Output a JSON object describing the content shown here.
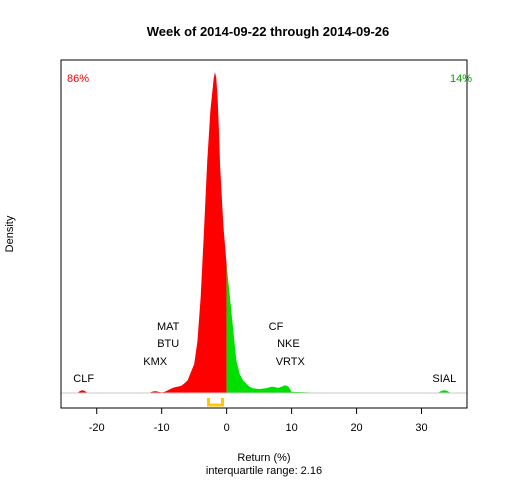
{
  "chart_data": {
    "type": "area",
    "title": "Week of 2014-09-22 through 2014-09-26",
    "xlabel": "Return (%)",
    "ylabel": "Density",
    "subtitle": "interquartile range: 2.16",
    "xlim": [
      -25.5,
      37
    ],
    "xticks": [
      -20,
      -10,
      0,
      10,
      20,
      30
    ],
    "colors": {
      "negative": "#ff0000",
      "positive": "#00e000",
      "iqr_bracket": "#ffc800",
      "baseline": "#c8c8c8"
    },
    "percent_negative": "86%",
    "percent_positive": "14%",
    "density_curve": {
      "x": [
        -23.0,
        -22.6,
        -22.2,
        -21.8,
        -21.4,
        -20.0,
        -15.0,
        -12.0,
        -11.5,
        -11.0,
        -10.5,
        -10.0,
        -9.5,
        -9.0,
        -8.5,
        -8.0,
        -7.5,
        -7.0,
        -6.5,
        -6.0,
        -5.5,
        -5.0,
        -4.5,
        -4.0,
        -3.5,
        -3.0,
        -2.5,
        -2.0,
        -1.8,
        -1.6,
        -1.4,
        -1.2,
        -1.0,
        -0.5,
        0.0,
        0.5,
        1.0,
        1.5,
        2.0,
        2.5,
        3.0,
        3.5,
        4.0,
        5.0,
        6.0,
        7.0,
        8.0,
        9.0,
        9.5,
        10.0,
        15.0,
        32.5,
        33.0,
        33.5,
        34.0,
        34.5,
        36.0
      ],
      "y": [
        0.0,
        0.006,
        0.009,
        0.006,
        0.0,
        0.0,
        0.0,
        0.0,
        0.004,
        0.006,
        0.004,
        0.002,
        0.004,
        0.009,
        0.014,
        0.018,
        0.02,
        0.022,
        0.03,
        0.04,
        0.065,
        0.09,
        0.16,
        0.3,
        0.5,
        0.72,
        0.88,
        0.98,
        1.0,
        0.98,
        0.92,
        0.82,
        0.7,
        0.52,
        0.4,
        0.3,
        0.2,
        0.1,
        0.06,
        0.04,
        0.03,
        0.02,
        0.015,
        0.012,
        0.015,
        0.02,
        0.016,
        0.024,
        0.02,
        0.004,
        0.0,
        0.0,
        0.006,
        0.009,
        0.006,
        0.0,
        0.0
      ]
    },
    "iqr_range": [
      -2.8,
      -0.64
    ],
    "annotations": [
      {
        "label": "MAT",
        "x": -9.0,
        "level": 4
      },
      {
        "label": "BTU",
        "x": -9.0,
        "level": 3
      },
      {
        "label": "KMX",
        "x": -11.0,
        "level": 2
      },
      {
        "label": "CLF",
        "x": -22.0,
        "level": 1
      },
      {
        "label": "CF",
        "x": 7.6,
        "level": 4
      },
      {
        "label": "NKE",
        "x": 9.5,
        "level": 3
      },
      {
        "label": "VRTX",
        "x": 9.8,
        "level": 2
      },
      {
        "label": "SIAL",
        "x": 33.5,
        "level": 1
      }
    ]
  }
}
